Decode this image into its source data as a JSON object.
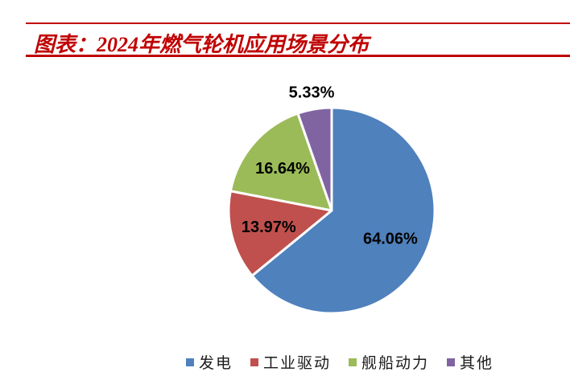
{
  "header": {
    "title": "图表：2024年燃气轮机应用场景分布",
    "accent_color": "#C00000"
  },
  "chart_data": {
    "type": "pie",
    "title": "2024年燃气轮机应用场景分布",
    "categories": [
      "发电",
      "工业驱动",
      "舰船动力",
      "其他"
    ],
    "values": [
      64.06,
      13.97,
      16.64,
      5.33
    ],
    "data_labels": [
      "64.06%",
      "13.97%",
      "16.64%",
      "5.33%"
    ],
    "colors": [
      "#4F81BD",
      "#C0504D",
      "#9BBB59",
      "#8064A2"
    ],
    "slice_names": [
      "power-generation",
      "industrial-drive",
      "marine-propulsion",
      "other"
    ],
    "start_angle_deg": 0,
    "direction": "clockwise",
    "slice_border_color": "#FFFFFF",
    "data_label_color": "#000000",
    "legend_position": "bottom"
  },
  "legend": {
    "items": [
      {
        "label": "发电",
        "color": "#4F81BD"
      },
      {
        "label": "工业驱动",
        "color": "#C0504D"
      },
      {
        "label": "舰船动力",
        "color": "#9BBB59"
      },
      {
        "label": "其他",
        "color": "#8064A2"
      }
    ]
  }
}
